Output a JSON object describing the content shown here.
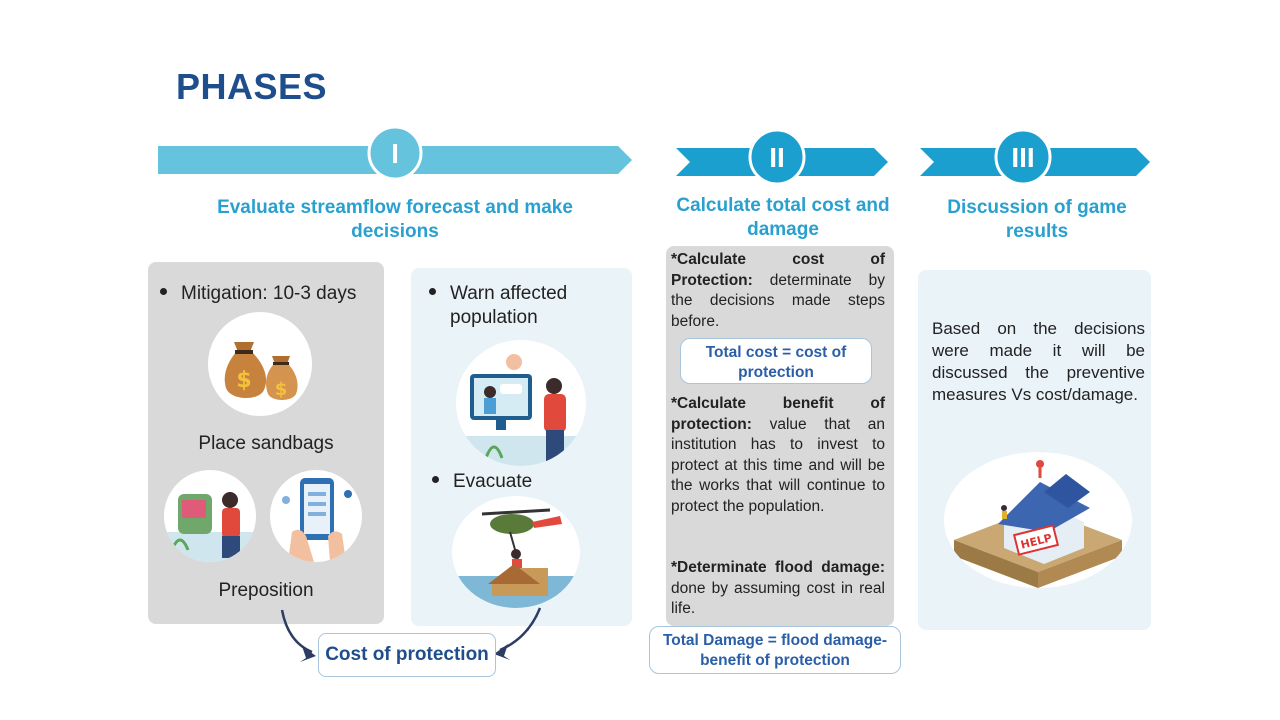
{
  "title": "PHASES",
  "phases": [
    {
      "numeral": "I",
      "heading_line1": "Evaluate streamflow forecast and make",
      "heading_line2": "decisions"
    },
    {
      "numeral": "II",
      "heading_line1": "Calculate total cost and",
      "heading_line2": "damage"
    },
    {
      "numeral": "III",
      "heading_line1": "Discussion of game",
      "heading_line2": "results"
    }
  ],
  "phase1": {
    "left_panel": {
      "bullet": "Mitigation: 10-3 days",
      "caption1": "Place sandbags",
      "caption2": "Preposition"
    },
    "right_panel": {
      "bullet1_line1": "Warn affected",
      "bullet1_line2": "population",
      "bullet2": "Evacuate"
    },
    "result_box": "Cost of protection"
  },
  "phase2": {
    "block1": {
      "bold1": "*Calculate cost of Protection:",
      "text1": " determinate by the decisions made steps before."
    },
    "formula1_line1": "Total cost = cost of",
    "formula1_line2": "protection",
    "block2": {
      "bold": "*Calculate benefit of protection:",
      "text": " value that an institution has to invest to protect at this time and will be the works that will continue to protect the population."
    },
    "block3": {
      "bold": "*Determinate flood damage:",
      "text": " done by assuming cost in real life."
    },
    "formula2_line1": "Total Damage = flood damage-",
    "formula2_line2": "benefit of protection"
  },
  "phase3": {
    "text": "Based on the decisions were made it will be discussed the preventive measures Vs cost/damage.",
    "help_sign": "HELP"
  },
  "colors": {
    "accent": "#2aa0cf",
    "arrow_light": "#65c3de",
    "arrow_dark": "#1a9fce",
    "title": "#1f4e8c",
    "panel_gray": "#d9d9d9",
    "panel_light": "#eaf3f8"
  },
  "icons": [
    "money-bags-icon",
    "sandbags-person-icon",
    "phone-alert-icon",
    "video-call-warning-icon",
    "helicopter-rescue-icon",
    "flooded-house-help-icon",
    "curved-arrow-icon"
  ]
}
